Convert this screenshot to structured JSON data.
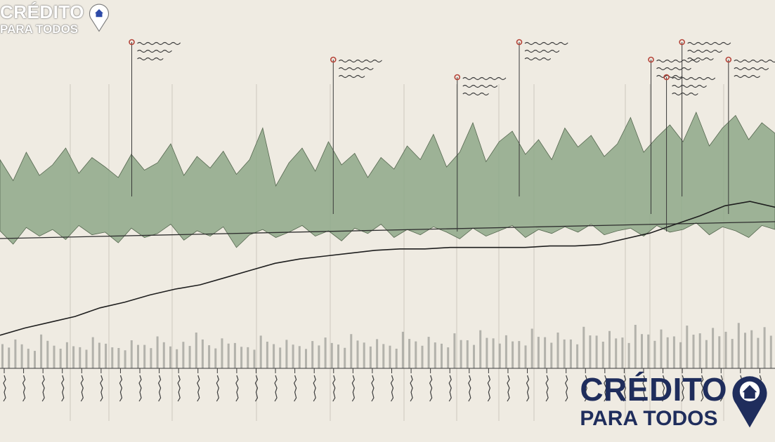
{
  "brand": {
    "line1": "CRÉDITO",
    "line2": "PARA TODOS",
    "pin_icon": "house-location-pin-icon",
    "primary_color": "#1f2d5c",
    "pin_color_top_logo": "#ffffff",
    "pin_color_bottom_logo": "#1f2d5c"
  },
  "chart_data": {
    "type": "area",
    "title": "",
    "xlabel": "",
    "ylabel": "",
    "grid": false,
    "legend": "none",
    "note": "Illustrative chart; all printed labels are illegible scribbles, no tick values readable.",
    "series": [
      {
        "values": [
          0.55,
          0.35,
          0.62,
          0.4,
          0.5,
          0.66,
          0.42,
          0.57,
          0.48,
          0.38,
          0.6,
          0.45,
          0.52,
          0.7,
          0.4,
          0.58,
          0.47,
          0.63,
          0.41,
          0.55,
          0.85,
          0.3,
          0.52,
          0.66,
          0.44,
          0.72,
          0.5,
          0.61,
          0.38,
          0.57,
          0.46,
          0.68,
          0.55,
          0.79,
          0.48,
          0.62,
          0.9,
          0.53,
          0.72,
          0.82,
          0.6,
          0.74,
          0.55,
          0.85,
          0.67,
          0.78,
          0.58,
          0.7,
          0.95,
          0.62,
          0.76,
          0.88,
          0.72,
          1.0,
          0.68,
          0.85,
          0.97,
          0.74,
          0.9,
          0.8
        ],
        "low": [
          0.2,
          0.4,
          0.15,
          0.28,
          0.18,
          0.33,
          0.12,
          0.26,
          0.22,
          0.38,
          0.16,
          0.3,
          0.24,
          0.1,
          0.34,
          0.2,
          0.28,
          0.14,
          0.45,
          0.26,
          0.18,
          0.3,
          0.22,
          0.12,
          0.28,
          0.2,
          0.35,
          0.16,
          0.24,
          0.1,
          0.3,
          0.18,
          0.26,
          0.14,
          0.22,
          0.32,
          0.16,
          0.28,
          0.2,
          0.12,
          0.3,
          0.18,
          0.24,
          0.14,
          0.22,
          0.1,
          0.26,
          0.2,
          0.16,
          0.28,
          0.12,
          0.22,
          0.18,
          0.08,
          0.26,
          0.14,
          0.2,
          0.3,
          0.12,
          0.18
        ]
      },
      {
        "values": [
          0.05,
          0.1,
          0.14,
          0.18,
          0.24,
          0.28,
          0.33,
          0.37,
          0.4,
          0.45,
          0.5,
          0.55,
          0.58,
          0.6,
          0.62,
          0.64,
          0.65,
          0.65,
          0.66,
          0.66,
          0.66,
          0.66,
          0.67,
          0.67,
          0.68,
          0.72,
          0.76,
          0.82,
          0.88,
          0.95,
          0.98,
          0.94
        ]
      },
      {
        "values": [
          0.3,
          0.42,
          0.18,
          0.55,
          0.26,
          0.35,
          0.22,
          0.48,
          0.31,
          0.2,
          0.4,
          0.28,
          0.5,
          0.24,
          0.36,
          0.6,
          0.27,
          0.45,
          0.33,
          0.22,
          0.52,
          0.3,
          0.41,
          0.25,
          0.38,
          0.47,
          0.29,
          0.56,
          0.34,
          0.43,
          0.26,
          0.62,
          0.37,
          0.49,
          0.31,
          0.58,
          0.4,
          0.66,
          0.45,
          0.53,
          0.38,
          0.7,
          0.48,
          0.6,
          0.42,
          0.75,
          0.52,
          0.64,
          0.47,
          0.8,
          0.55,
          0.68,
          0.5,
          0.78,
          0.58,
          0.72,
          0.62,
          0.85,
          0.66,
          0.74
        ]
      }
    ],
    "annotations": [
      {
        "x": 0.17
      },
      {
        "x": 0.43
      },
      {
        "x": 0.59
      },
      {
        "x": 0.67
      },
      {
        "x": 0.84
      },
      {
        "x": 0.86
      },
      {
        "x": 0.88
      },
      {
        "x": 0.94
      }
    ]
  }
}
